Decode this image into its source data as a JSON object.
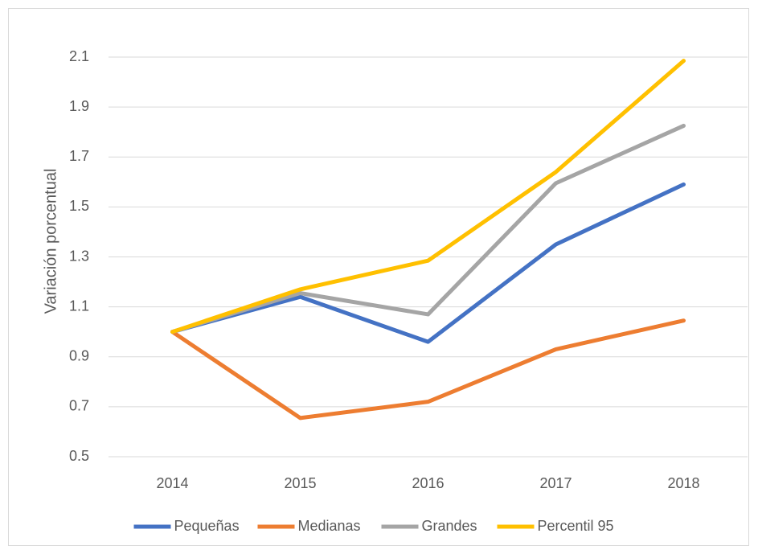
{
  "chart_data": {
    "type": "line",
    "y_label": "Variación porcentual",
    "categories": [
      "2014",
      "2015",
      "2016",
      "2017",
      "2018"
    ],
    "series": [
      {
        "name": "Pequeñas",
        "color": "#4472c4",
        "values": [
          1.0,
          1.14,
          0.96,
          1.35,
          1.59
        ]
      },
      {
        "name": "Medianas",
        "color": "#ed7d31",
        "values": [
          1.0,
          0.655,
          0.72,
          0.93,
          1.045
        ]
      },
      {
        "name": "Grandes",
        "color": "#a5a5a5",
        "values": [
          1.0,
          1.155,
          1.07,
          1.595,
          1.825
        ]
      },
      {
        "name": "Percentil 95",
        "color": "#ffc000",
        "values": [
          1.0,
          1.17,
          1.285,
          1.64,
          2.085
        ]
      }
    ],
    "ylim": [
      0.5,
      2.1
    ],
    "yticks": [
      0.5,
      0.7,
      0.9,
      1.1,
      1.3,
      1.5,
      1.7,
      1.9,
      2.1
    ],
    "grid": true,
    "legend": "bottom"
  }
}
